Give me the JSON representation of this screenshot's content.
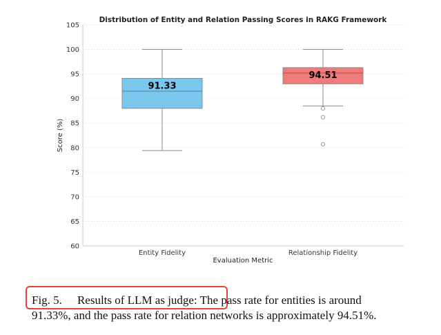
{
  "chart_data": {
    "type": "boxplot",
    "title": "Distribution of Entity and Relation Passing Scores in RAKG Framework",
    "xlabel": "Evaluation Metric",
    "ylabel": "Score (%)",
    "ylim": [
      60,
      105
    ],
    "yticks": [
      60,
      65,
      70,
      75,
      80,
      85,
      90,
      95,
      100,
      105
    ],
    "grid": true,
    "categories": [
      "Entity Fidelity",
      "Relationship Fidelity"
    ],
    "series": [
      {
        "name": "Entity Fidelity",
        "color": "#7ac7ee",
        "median_line_color": "#5a8fb0",
        "whisker_low": 79.4,
        "q1": 88.0,
        "median": 91.5,
        "q3": 94.1,
        "whisker_high": 100,
        "outliers": [],
        "mean_label": "91.33"
      },
      {
        "name": "Relationship Fidelity",
        "color": "#ef7b7b",
        "median_line_color": "#b05858",
        "whisker_low": 88.5,
        "q1": 93.0,
        "median": 95.2,
        "q3": 96.3,
        "whisker_high": 100,
        "outliers": [
          88.0,
          86.2,
          80.7
        ],
        "mean_label": "94.51"
      }
    ]
  },
  "caption": {
    "figure_label": "Fig. 5.",
    "highlighted_title": "Results of LLM as judge:",
    "text_line1": "The pass rate for entities is around",
    "text_line2": "91.33%, and the pass rate for relation networks is approximately 94.51%."
  }
}
